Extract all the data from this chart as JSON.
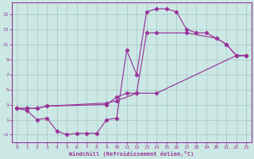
{
  "xlabel": "Windchill (Refroidissement éolien,°C)",
  "bg_color": "#cce8e4",
  "line_color": "#993399",
  "grid_color": "#aacccc",
  "xlim": [
    -0.5,
    23.5
  ],
  "ylim": [
    -2.0,
    16.5
  ],
  "xticks": [
    0,
    1,
    2,
    3,
    4,
    5,
    6,
    7,
    8,
    9,
    10,
    11,
    12,
    13,
    14,
    15,
    16,
    17,
    18,
    19,
    20,
    21,
    22,
    23
  ],
  "yticks": [
    -1,
    1,
    3,
    5,
    7,
    9,
    11,
    13,
    15
  ],
  "curve1_x": [
    0,
    1,
    2,
    3,
    4,
    5,
    6,
    7,
    8,
    9,
    10,
    11,
    12,
    13,
    14,
    15,
    16,
    17,
    18,
    19,
    20,
    21,
    22,
    23
  ],
  "curve1_y": [
    2.5,
    2.2,
    1.0,
    1.2,
    -0.5,
    -1.0,
    -0.8,
    -0.8,
    -0.8,
    1.0,
    1.2,
    10.2,
    7.0,
    15.3,
    15.7,
    15.7,
    15.3,
    13.0,
    12.5,
    12.5,
    11.8,
    11.0,
    9.5,
    9.5
  ],
  "curve2_x": [
    0,
    1,
    2,
    3,
    9,
    10,
    12,
    13,
    14,
    17,
    20,
    21,
    22,
    23
  ],
  "curve2_y": [
    2.5,
    2.5,
    2.5,
    2.8,
    3.2,
    3.5,
    4.5,
    12.5,
    12.5,
    12.5,
    11.8,
    11.0,
    9.5,
    9.5
  ],
  "curve3_x": [
    0,
    1,
    2,
    3,
    9,
    10,
    11,
    12,
    14,
    22,
    23
  ],
  "curve3_y": [
    2.5,
    2.5,
    2.5,
    2.8,
    3.0,
    4.0,
    4.5,
    4.5,
    4.5,
    9.5,
    9.5
  ]
}
